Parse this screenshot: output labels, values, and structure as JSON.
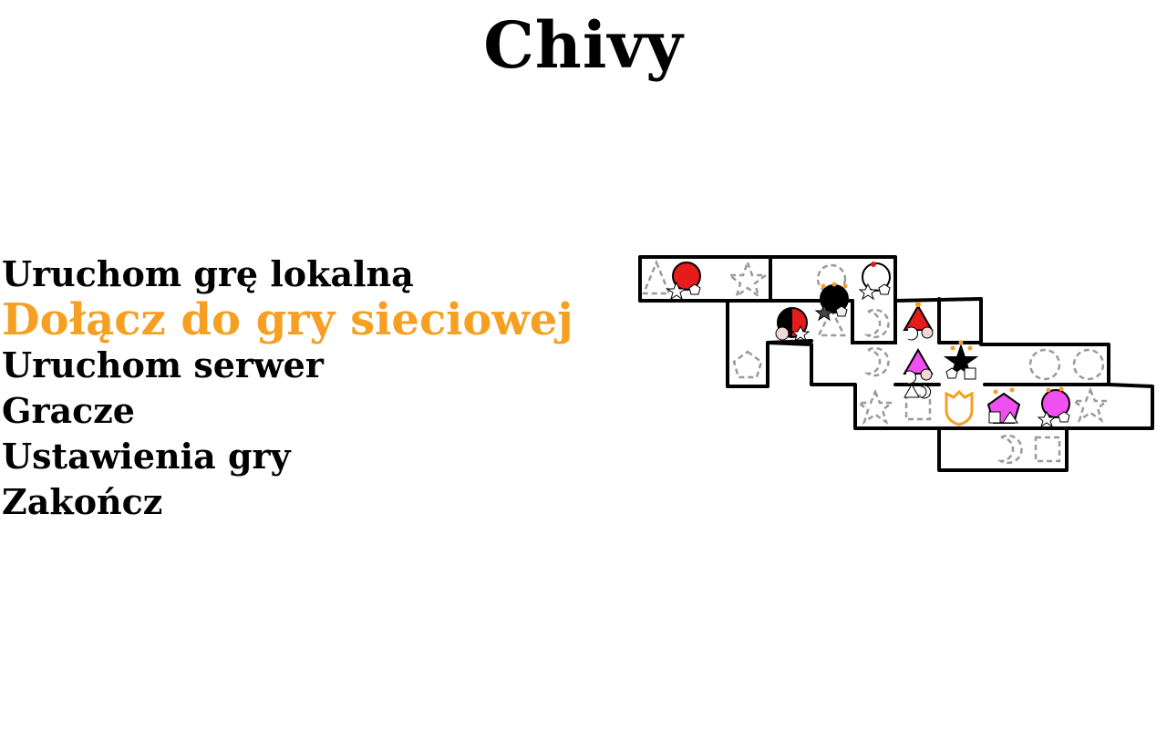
{
  "title": "Chivy",
  "menu": {
    "items": [
      "Uruchom grę lokalną",
      "Dołącz do gry sieciowej",
      "Uruchom serwer",
      "Gracze",
      "Ustawienia gry",
      "Zakończ"
    ],
    "selected_index": 1
  },
  "colors": {
    "highlight": "#f5a023",
    "text": "#000000",
    "board_outline": "#000000",
    "empty_slot": "#9a9a9a",
    "piece_red": "#e61b1b",
    "piece_black": "#000000",
    "piece_white": "#ffffff",
    "piece_magenta": "#f050f0",
    "piece_orange": "#f5a023"
  },
  "board_preview": {
    "empty_slot_icons": [
      "triangle-icon",
      "star-icon",
      "circle-icon",
      "crescent-icon",
      "crescent-icon",
      "crescent-icon",
      "circle-icon",
      "circle-icon",
      "pentagon-icon",
      "star-icon",
      "square-icon",
      "star-icon",
      "crescent-icon",
      "square-icon",
      "triangle-icon"
    ],
    "pieces": [
      {
        "name": "red-piece",
        "color": "red"
      },
      {
        "name": "white-piece",
        "color": "white"
      },
      {
        "name": "black-piece",
        "color": "black"
      },
      {
        "name": "red-black-piece",
        "color": "red-black"
      },
      {
        "name": "red-cone-piece",
        "color": "red"
      },
      {
        "name": "magenta-cone-piece",
        "color": "magenta"
      },
      {
        "name": "black-star-piece",
        "color": "black"
      },
      {
        "name": "magenta-pentagon-piece",
        "color": "magenta"
      },
      {
        "name": "magenta-round-piece",
        "color": "magenta"
      }
    ],
    "shield_icon": "shield-icon"
  }
}
